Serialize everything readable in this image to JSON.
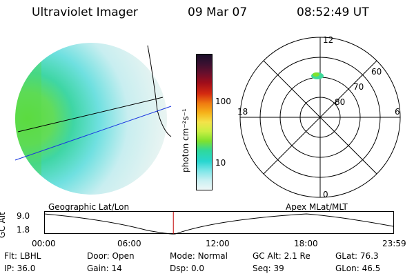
{
  "header": {
    "instrument": "Ultraviolet Imager",
    "date": "09 Mar 07",
    "time": "08:52:49 UT"
  },
  "colorbar": {
    "unit_label": "photon cm⁻²s⁻¹",
    "tick_labels": [
      "100",
      "10"
    ],
    "colors": [
      "#1a0f2a",
      "#3b1030",
      "#6a0f2c",
      "#a00d1a",
      "#d42a10",
      "#ef7a10",
      "#f6b21a",
      "#f4e34a",
      "#c9ef42",
      "#7fe12e",
      "#2fd89c",
      "#28d6d0",
      "#7ee6e8",
      "#c8f0f2",
      "#eef7f7"
    ]
  },
  "polar": {
    "mlt_labels": [
      "12",
      "18",
      "6",
      "0"
    ],
    "lat_labels": [
      "60",
      "70",
      "80"
    ]
  },
  "timeline": {
    "left_label": "Geographic Lat/Lon",
    "right_label": "Apex MLat/MLT",
    "axis_title": "GC Alt",
    "y_ticks": [
      "9.0",
      "1.8"
    ],
    "x_ticks": [
      "00:00",
      "06:00",
      "12:00",
      "18:00",
      "23:59"
    ],
    "current_time_marker_hours": 8.88
  },
  "info": {
    "row1": [
      {
        "key": "Flt:",
        "val": "LBHL"
      },
      {
        "key": "Door:",
        "val": "Open"
      },
      {
        "key": "Mode:",
        "val": "Normal"
      },
      {
        "key": "GC Alt:",
        "val": "2.1 Re"
      },
      {
        "key": "GLat:",
        "val": "76.3"
      }
    ],
    "row2": [
      {
        "key": "IP:",
        "val": "36.0"
      },
      {
        "key": "Gain:",
        "val": "14"
      },
      {
        "key": "Dsp:",
        "val": "0.0"
      },
      {
        "key": "Seq:",
        "val": "39"
      },
      {
        "key": "GLon:",
        "val": "46.5"
      }
    ]
  }
}
